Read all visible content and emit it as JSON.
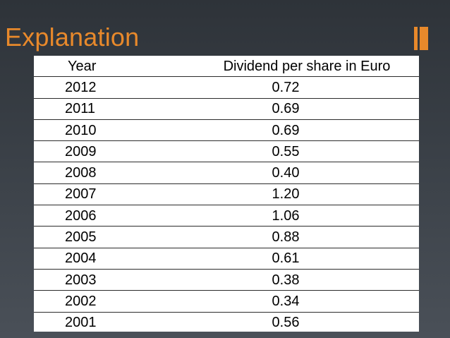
{
  "slide": {
    "title": "Explanation",
    "accent_color": "#e8892b"
  },
  "table": {
    "headers": [
      "Year",
      "Dividend per share in Euro"
    ],
    "rows": [
      {
        "year": "2012",
        "dividend": "0.72"
      },
      {
        "year": "2011",
        "dividend": "0.69"
      },
      {
        "year": "2010",
        "dividend": "0.69"
      },
      {
        "year": "2009",
        "dividend": "0.55"
      },
      {
        "year": "2008",
        "dividend": "0.40"
      },
      {
        "year": "2007",
        "dividend": "1.20"
      },
      {
        "year": "2006",
        "dividend": "1.06"
      },
      {
        "year": "2005",
        "dividend": "0.88"
      },
      {
        "year": "2004",
        "dividend": "0.61"
      },
      {
        "year": "2003",
        "dividend": "0.38"
      },
      {
        "year": "2002",
        "dividend": "0.34"
      },
      {
        "year": "2001",
        "dividend": "0.56"
      }
    ]
  }
}
